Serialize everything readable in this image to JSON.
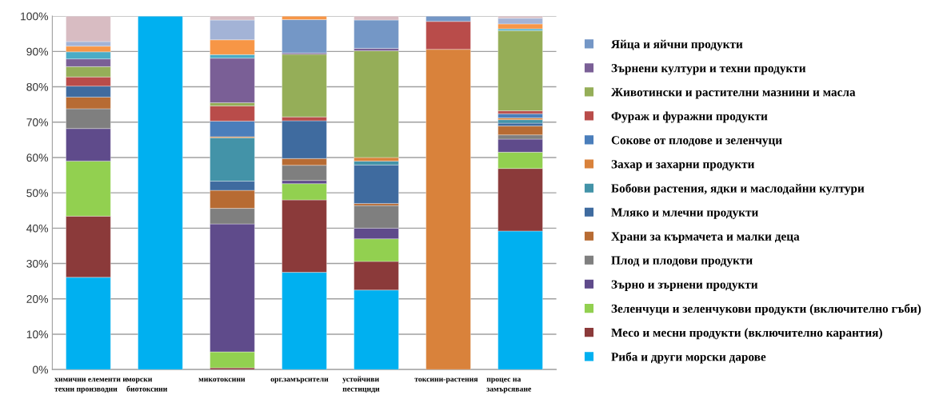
{
  "chart_data": {
    "type": "bar",
    "stacked": true,
    "categories": [
      "химични елементи и\nтехни производни",
      "морски\nбиотоксини",
      "микотоксини",
      "орг.замърсители",
      "устойчиви\nпестициди",
      "токсини-растения",
      "процес на\nзамърсяване"
    ],
    "ylim": [
      0,
      100
    ],
    "yticks": [
      {
        "value": 0,
        "label": "0%"
      },
      {
        "value": 10,
        "label": "10%"
      },
      {
        "value": 20,
        "label": "20%"
      },
      {
        "value": 30,
        "label": "30%"
      },
      {
        "value": 40,
        "label": "40%"
      },
      {
        "value": 50,
        "label": "50%"
      },
      {
        "value": 60,
        "label": "60%"
      },
      {
        "value": 70,
        "label": "70%"
      },
      {
        "value": 80,
        "label": "80%"
      },
      {
        "value": 90,
        "label": "90%"
      },
      {
        "value": 100,
        "label": "100%"
      }
    ],
    "grid": "y",
    "legend": "right",
    "series": [
      {
        "name": "Риба и други морски дарове",
        "color": "#00b0f0",
        "values": [
          26.1,
          100,
          0,
          27.5,
          22.5,
          0,
          39.2
        ]
      },
      {
        "name": "Месо и месни продукти (включително карантия)",
        "color": "#8b3a3a",
        "values": [
          17.3,
          0,
          0.5,
          20.5,
          8.1,
          0,
          17.7
        ]
      },
      {
        "name": "Зеленчуци и зеленчукови продукти (включително гъби)",
        "color": "#92d050",
        "values": [
          15.6,
          0,
          4.5,
          4.6,
          6.4,
          0,
          4.6
        ]
      },
      {
        "name": "Зърно и зърнени продукти",
        "color": "#5f4b8b",
        "values": [
          9.2,
          0,
          36.2,
          0.9,
          3.0,
          0,
          3.7
        ]
      },
      {
        "name": "Плод и плодови продукти",
        "color": "#7f7f7f",
        "values": [
          5.6,
          0,
          4.4,
          4.3,
          6.4,
          0,
          1.2
        ]
      },
      {
        "name": "Храни за кърмачета и малки деца",
        "color": "#b76b33",
        "values": [
          3.3,
          0,
          5.1,
          1.9,
          0.6,
          0,
          2.5
        ]
      },
      {
        "name": "Мляко и млечни продукти",
        "color": "#3f6b9f",
        "values": [
          3.1,
          0,
          2.6,
          10.7,
          10.9,
          0,
          0.8
        ]
      },
      {
        "name": "Бобови растения, ядки и маслодайни култури",
        "color": "#4393a8",
        "values": [
          0,
          0,
          12.3,
          0,
          1.1,
          0,
          1.0
        ]
      },
      {
        "name": "Захар и захарни продукти",
        "color": "#d9823b",
        "values": [
          0,
          0,
          0.3,
          0,
          1.0,
          90.6,
          0.5
        ]
      },
      {
        "name": "Сокове от плодове и зеленчуци",
        "color": "#4a7ebb",
        "values": [
          0,
          0,
          4.4,
          0,
          0,
          0,
          1.2
        ]
      },
      {
        "name": "Фураж и фуражни продукти",
        "color": "#b94c4a",
        "values": [
          2.6,
          0,
          4.3,
          1.1,
          0,
          7.9,
          0.8
        ]
      },
      {
        "name": "Животински и растителни мазнини и масла",
        "color": "#95ae58",
        "values": [
          2.9,
          0,
          0.9,
          17.7,
          30.2,
          0,
          22.7
        ]
      },
      {
        "name": "Зърнени култури и техни продукти",
        "color": "#7a5f96",
        "values": [
          2.2,
          0,
          12.6,
          0.4,
          0.7,
          0,
          0
        ]
      },
      {
        "name": "Яйца и яйчни продукти",
        "color": "#7497c6",
        "values": [
          0,
          0,
          0,
          9.4,
          8.0,
          1.5,
          0
        ]
      },
      {
        "color": "#4bacc6",
        "values": [
          2.0,
          0,
          1.0,
          0,
          0,
          0,
          0.5
        ]
      },
      {
        "color": "#f79646",
        "values": [
          1.6,
          0,
          4.2,
          1.0,
          0,
          0,
          1.4
        ]
      },
      {
        "color": "#a3b3d6",
        "values": [
          1.3,
          0,
          5.6,
          0,
          0,
          0,
          1.6
        ]
      },
      {
        "color": "#d8bcc2",
        "values": [
          7.2,
          0,
          1.1,
          0,
          1.1,
          0,
          0.6
        ]
      }
    ]
  }
}
